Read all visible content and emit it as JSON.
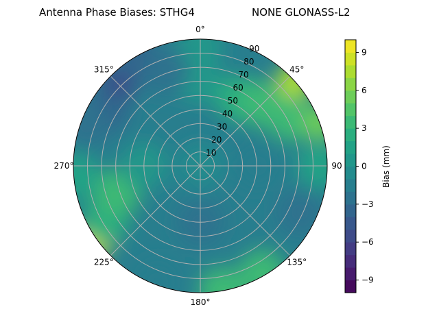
{
  "chart_data": {
    "type": "heatmap",
    "subtype": "polar-contour",
    "title_left": "Antenna Phase Biases: STHG4",
    "title_right": "NONE GLONASS-L2",
    "angular_ticks": [
      "0°",
      "45°",
      "90",
      "135°",
      "180°",
      "225°",
      "270°",
      "315°"
    ],
    "angular_tick_values": [
      0,
      45,
      90,
      135,
      180,
      225,
      270,
      315
    ],
    "radial_ticks": [
      "10",
      "20",
      "30",
      "40",
      "50",
      "60",
      "70",
      "80",
      "90"
    ],
    "radial_tick_values": [
      10,
      20,
      30,
      40,
      50,
      60,
      70,
      80,
      90
    ],
    "rlim": [
      0,
      90
    ],
    "colorbar": {
      "label": "Bias (mm)",
      "range": [
        -10,
        10
      ],
      "levels": 20,
      "ticks": [
        "−9",
        "−6",
        "−3",
        "0",
        "3",
        "6",
        "9"
      ],
      "tick_values": [
        -9,
        -6,
        -3,
        0,
        3,
        6,
        9
      ],
      "colormap": "viridis"
    },
    "base_value": -1.5,
    "samples": [
      {
        "az": 0,
        "zen": 0,
        "value": -1
      },
      {
        "az": 0,
        "zen": 60,
        "value": 0
      },
      {
        "az": 0,
        "zen": 85,
        "value": 0
      },
      {
        "az": 315,
        "zen": 82,
        "value": -5.5
      },
      {
        "az": 330,
        "zen": 86,
        "value": -4
      },
      {
        "az": 300,
        "zen": 78,
        "value": -3.5
      },
      {
        "az": 290,
        "zen": 85,
        "value": -3
      },
      {
        "az": 340,
        "zen": 72,
        "value": -2.5
      },
      {
        "az": 30,
        "zen": 55,
        "value": 2
      },
      {
        "az": 45,
        "zen": 62,
        "value": 3.5
      },
      {
        "az": 62,
        "zen": 72,
        "value": 3.5
      },
      {
        "az": 48,
        "zen": 90,
        "value": 7
      },
      {
        "az": 70,
        "zen": 90,
        "value": 5
      },
      {
        "az": 90,
        "zen": 85,
        "value": 1
      },
      {
        "az": 115,
        "zen": 78,
        "value": -2.5
      },
      {
        "az": 150,
        "zen": 88,
        "value": 3
      },
      {
        "az": 170,
        "zen": 90,
        "value": 3
      },
      {
        "az": 180,
        "zen": 40,
        "value": -2.5
      },
      {
        "az": 200,
        "zen": 88,
        "value": -2
      },
      {
        "az": 235,
        "zen": 92,
        "value": 8
      },
      {
        "az": 240,
        "zen": 78,
        "value": 2.5
      },
      {
        "az": 252,
        "zen": 62,
        "value": 3.5
      },
      {
        "az": 265,
        "zen": 88,
        "value": 1.5
      },
      {
        "az": 270,
        "zen": 40,
        "value": 0
      },
      {
        "az": 90,
        "zen": 40,
        "value": -1.5
      }
    ]
  }
}
